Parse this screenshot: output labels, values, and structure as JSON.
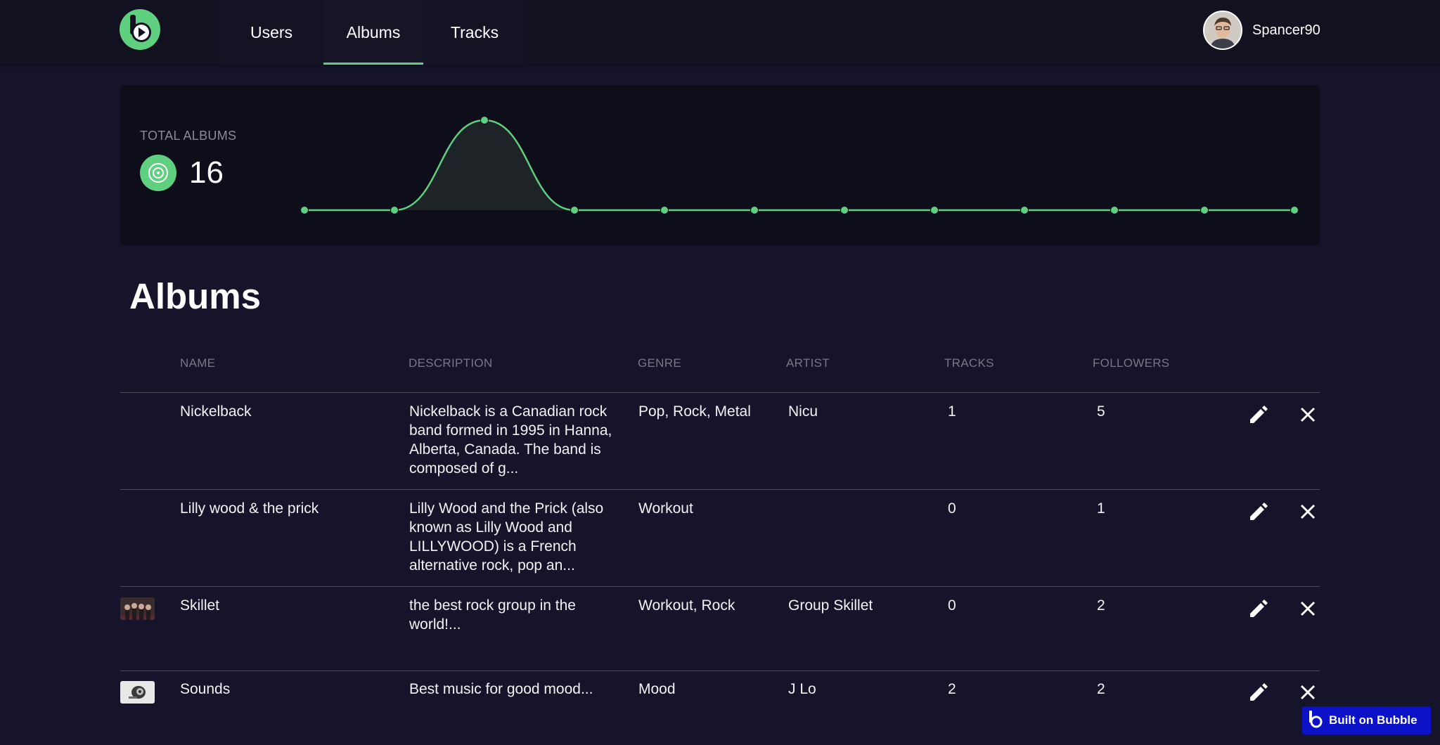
{
  "nav": {
    "tabs": [
      {
        "label": "Users"
      },
      {
        "label": "Albums",
        "active": true
      },
      {
        "label": "Tracks"
      }
    ],
    "username": "Spancer90",
    "logo_icon": "bubble-play-logo"
  },
  "stats": {
    "label": "TOTAL ALBUMS",
    "value": "16",
    "icon": "disc-icon"
  },
  "chart_data": {
    "type": "area",
    "values": [
      0,
      0,
      1,
      0,
      0,
      0,
      0,
      0,
      0,
      0,
      0,
      0
    ],
    "grid": false,
    "color": "#5fcf80"
  },
  "page_title": "Albums",
  "table": {
    "columns": [
      "NAME",
      "DESCRIPTION",
      "GENRE",
      "ARTIST",
      "TRACKS",
      "FOLLOWERS"
    ],
    "rows": [
      {
        "name": "Nickelback",
        "description": "Nickelback is a Canadian rock band formed in 1995 in Hanna, Alberta, Canada. The band is composed of g...",
        "genre": "Pop, Rock, Metal",
        "artist": "Nicu",
        "tracks": "1",
        "followers": "5",
        "has_thumbnail": false
      },
      {
        "name": "Lilly wood & the prick",
        "description": "Lilly Wood and the Prick (also known as Lilly Wood and LILLYWOOD) is a French alternative rock, pop an...",
        "genre": "Workout",
        "artist": "",
        "tracks": "0",
        "followers": "1",
        "has_thumbnail": false
      },
      {
        "name": "Skillet",
        "description": "the best rock group in the world!...",
        "genre": "Workout, Rock",
        "artist": "Group Skillet",
        "tracks": "0",
        "followers": "2",
        "has_thumbnail": true
      },
      {
        "name": "Sounds",
        "description": "Best music for good mood...",
        "genre": "Mood",
        "artist": "J Lo",
        "tracks": "2",
        "followers": "2",
        "has_thumbnail": true
      }
    ],
    "row_actions": [
      "pencil-icon",
      "close-icon"
    ]
  },
  "badge": {
    "label": "Built on Bubble",
    "icon": "bubble-b-icon"
  },
  "colors": {
    "accent": "#5fcf80",
    "background": "#15142a",
    "topbar": "#121120",
    "card": "#0e0d1a",
    "badge": "#0b12c8"
  }
}
